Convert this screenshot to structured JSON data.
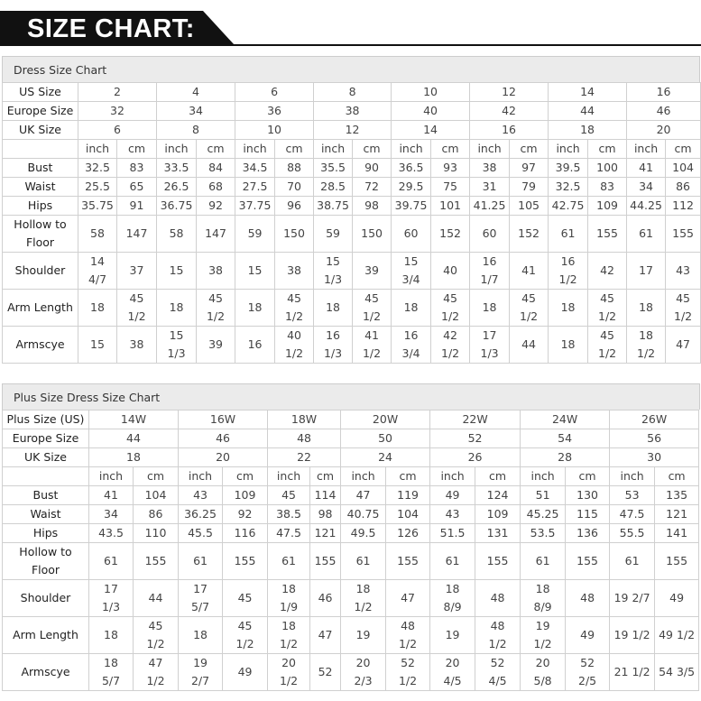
{
  "header": {
    "title": "SIZE CHART:"
  },
  "dress_chart": {
    "title": "Dress Size Chart",
    "size_rows": [
      {
        "label": "US Size",
        "values": [
          "2",
          "4",
          "6",
          "8",
          "10",
          "12",
          "14",
          "16"
        ]
      },
      {
        "label": "Europe Size",
        "values": [
          "32",
          "34",
          "36",
          "38",
          "40",
          "42",
          "44",
          "46"
        ]
      },
      {
        "label": "UK Size",
        "values": [
          "6",
          "8",
          "10",
          "12",
          "14",
          "16",
          "18",
          "20"
        ]
      }
    ],
    "units": [
      "inch",
      "cm"
    ],
    "measure_rows": [
      {
        "label": "Bust",
        "values": [
          "32.5",
          "83",
          "33.5",
          "84",
          "34.5",
          "88",
          "35.5",
          "90",
          "36.5",
          "93",
          "38",
          "97",
          "39.5",
          "100",
          "41",
          "104"
        ]
      },
      {
        "label": "Waist",
        "values": [
          "25.5",
          "65",
          "26.5",
          "68",
          "27.5",
          "70",
          "28.5",
          "72",
          "29.5",
          "75",
          "31",
          "79",
          "32.5",
          "83",
          "34",
          "86"
        ]
      },
      {
        "label": "Hips",
        "values": [
          "35.75",
          "91",
          "36.75",
          "92",
          "37.75",
          "96",
          "38.75",
          "98",
          "39.75",
          "101",
          "41.25",
          "105",
          "42.75",
          "109",
          "44.25",
          "112"
        ]
      },
      {
        "label": "Hollow to\nFloor",
        "values": [
          "58",
          "147",
          "58",
          "147",
          "59",
          "150",
          "59",
          "150",
          "60",
          "152",
          "60",
          "152",
          "61",
          "155",
          "61",
          "155"
        ]
      },
      {
        "label": "Shoulder",
        "values": [
          "14\n4/7",
          "37",
          "15",
          "38",
          "15",
          "38",
          "15\n1/3",
          "39",
          "15\n3/4",
          "40",
          "16\n1/7",
          "41",
          "16\n1/2",
          "42",
          "17",
          "43"
        ]
      },
      {
        "label": "Arm Length",
        "values": [
          "18",
          "45\n1/2",
          "18",
          "45\n1/2",
          "18",
          "45\n1/2",
          "18",
          "45\n1/2",
          "18",
          "45\n1/2",
          "18",
          "45\n1/2",
          "18",
          "45\n1/2",
          "18",
          "45\n1/2"
        ]
      },
      {
        "label": "Armscye",
        "values": [
          "15",
          "38",
          "15\n1/3",
          "39",
          "16",
          "40\n1/2",
          "16\n1/3",
          "41\n1/2",
          "16\n3/4",
          "42\n1/2",
          "17\n1/3",
          "44",
          "18",
          "45\n1/2",
          "18\n1/2",
          "47"
        ]
      }
    ]
  },
  "plus_chart": {
    "title": "Plus Size Dress Size Chart",
    "size_rows": [
      {
        "label": "Plus Size (US)",
        "values": [
          "14W",
          "16W",
          "18W",
          "20W",
          "22W",
          "24W",
          "26W"
        ]
      },
      {
        "label": "Europe Size",
        "values": [
          "44",
          "46",
          "48",
          "50",
          "52",
          "54",
          "56"
        ]
      },
      {
        "label": "UK Size",
        "values": [
          "18",
          "20",
          "22",
          "24",
          "26",
          "28",
          "30"
        ]
      }
    ],
    "units": [
      "inch",
      "cm"
    ],
    "measure_rows": [
      {
        "label": "Bust",
        "values": [
          "41",
          "104",
          "43",
          "109",
          "45",
          "114",
          "47",
          "119",
          "49",
          "124",
          "51",
          "130",
          "53",
          "135"
        ]
      },
      {
        "label": "Waist",
        "values": [
          "34",
          "86",
          "36.25",
          "92",
          "38.5",
          "98",
          "40.75",
          "104",
          "43",
          "109",
          "45.25",
          "115",
          "47.5",
          "121"
        ]
      },
      {
        "label": "Hips",
        "values": [
          "43.5",
          "110",
          "45.5",
          "116",
          "47.5",
          "121",
          "49.5",
          "126",
          "51.5",
          "131",
          "53.5",
          "136",
          "55.5",
          "141"
        ]
      },
      {
        "label": "Hollow to\nFloor",
        "values": [
          "61",
          "155",
          "61",
          "155",
          "61",
          "155",
          "61",
          "155",
          "61",
          "155",
          "61",
          "155",
          "61",
          "155"
        ]
      },
      {
        "label": "Shoulder",
        "values": [
          "17\n1/3",
          "44",
          "17\n5/7",
          "45",
          "18\n1/9",
          "46",
          "18\n1/2",
          "47",
          "18\n8/9",
          "48",
          "18\n8/9",
          "48",
          "19 2/7",
          "49"
        ]
      },
      {
        "label": "Arm Length",
        "values": [
          "18",
          "45\n1/2",
          "18",
          "45\n1/2",
          "18\n1/2",
          "47",
          "19",
          "48\n1/2",
          "19",
          "48\n1/2",
          "19\n1/2",
          "49",
          "19 1/2",
          "49 1/2"
        ]
      },
      {
        "label": "Armscye",
        "values": [
          "18\n5/7",
          "47\n1/2",
          "19\n2/7",
          "49",
          "20\n1/2",
          "52",
          "20\n2/3",
          "52\n1/2",
          "20\n4/5",
          "52\n4/5",
          "20\n5/8",
          "52\n2/5",
          "21 1/2",
          "54 3/5"
        ]
      }
    ]
  }
}
